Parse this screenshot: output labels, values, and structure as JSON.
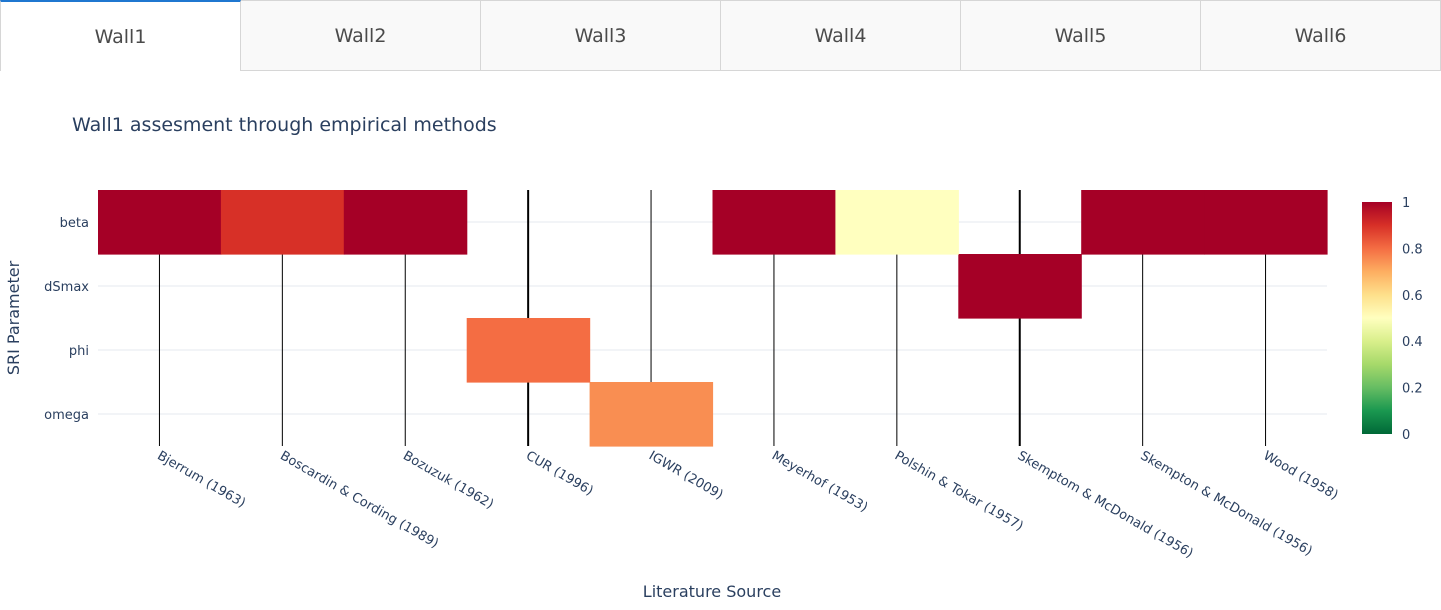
{
  "tabs": [
    {
      "label": "Wall1",
      "active": true
    },
    {
      "label": "Wall2",
      "active": false
    },
    {
      "label": "Wall3",
      "active": false
    },
    {
      "label": "Wall4",
      "active": false
    },
    {
      "label": "Wall5",
      "active": false
    },
    {
      "label": "Wall6",
      "active": false
    }
  ],
  "chart_data": {
    "type": "heatmap",
    "title": "Wall1 assesment through empirical methods",
    "xlabel": "Literature Source",
    "ylabel": "SRI Parameter",
    "x": [
      "Bjerrum (1963)",
      "Boscardin & Cording (1989)",
      "Bozuzuk (1962)",
      "CUR (1996)",
      "IGWR (2009)",
      "Meyerhof (1953)",
      "Polshin & Tokar (1957)",
      "Skemptom & McDonald (1956)",
      "Skempton & McDonald (1956)",
      "Wood (1958)"
    ],
    "y": [
      "omega",
      "phi",
      "dSmax",
      "beta"
    ],
    "z": [
      [
        null,
        null,
        null,
        null,
        0.75,
        null,
        null,
        null,
        null,
        null
      ],
      [
        null,
        null,
        null,
        0.8,
        null,
        null,
        null,
        null,
        null,
        null
      ],
      [
        null,
        null,
        null,
        null,
        null,
        null,
        null,
        1,
        null,
        null
      ],
      [
        1,
        0.9,
        1,
        null,
        null,
        1,
        0.5,
        null,
        1,
        1
      ]
    ],
    "colorscale": "RdYlGn (reversed)",
    "colorbar": {
      "ticks": [
        "0",
        "0.2",
        "0.4",
        "0.6",
        "0.8",
        "1"
      ],
      "range": [
        0,
        1
      ]
    },
    "grid": true,
    "x_gridlines": "black vertical lines at each category"
  }
}
